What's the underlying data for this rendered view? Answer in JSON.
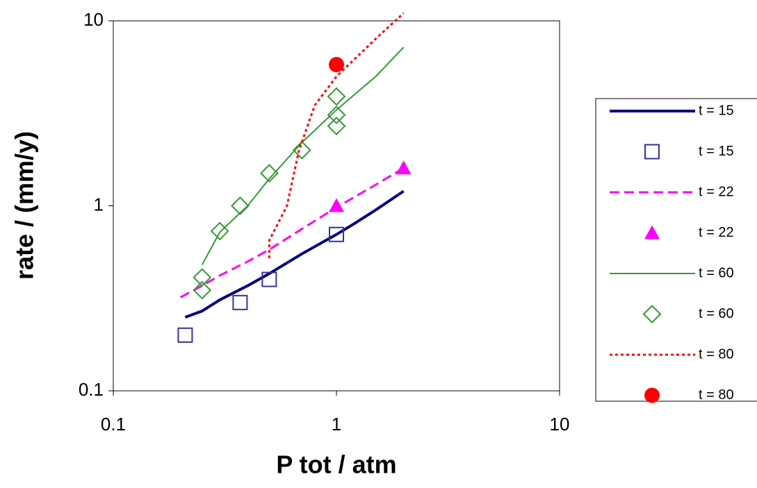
{
  "chart_data": {
    "type": "scatter-line",
    "xlabel": "P tot / atm",
    "ylabel": "rate / (mm/y)",
    "xscale": "log",
    "yscale": "log",
    "xlim": [
      0.1,
      10
    ],
    "ylim": [
      0.1,
      10
    ],
    "xticks": [
      0.1,
      1,
      10
    ],
    "yticks": [
      0.1,
      1,
      10
    ],
    "series": [
      {
        "name": "t = 15",
        "color": "#000080",
        "line_style": "solid",
        "line_width": 4,
        "marker": "none",
        "x": [
          0.21,
          0.25,
          0.3,
          0.4,
          0.5,
          0.7,
          1,
          1.2,
          1.5,
          2
        ],
        "values": [
          0.25,
          0.27,
          0.31,
          0.37,
          0.43,
          0.55,
          0.7,
          0.8,
          0.95,
          1.2
        ]
      },
      {
        "name": "t = 15",
        "color": "#333399",
        "line_style": "none",
        "marker": "square",
        "x": [
          0.21,
          0.37,
          0.5,
          1
        ],
        "values": [
          0.2,
          0.3,
          0.4,
          0.7
        ]
      },
      {
        "name": "t = 22",
        "color": "#ff00ff",
        "line_style": "dashed",
        "line_width": 3,
        "marker": "none",
        "x": [
          0.2,
          0.25,
          0.3,
          0.4,
          0.5,
          0.7,
          1,
          1.5,
          2
        ],
        "values": [
          0.32,
          0.37,
          0.42,
          0.5,
          0.58,
          0.75,
          0.98,
          1.3,
          1.6
        ]
      },
      {
        "name": "t = 22",
        "color": "#ff00ff",
        "line_style": "none",
        "marker": "triangle",
        "x": [
          1,
          2
        ],
        "values": [
          1.0,
          1.6
        ]
      },
      {
        "name": "t = 60",
        "color": "#339933",
        "line_style": "solid",
        "line_width": 2,
        "marker": "none",
        "x": [
          0.25,
          0.3,
          0.4,
          0.5,
          0.7,
          1,
          1.5,
          2
        ],
        "values": [
          0.48,
          0.72,
          1.0,
          1.4,
          2.2,
          3.3,
          5,
          7.2
        ]
      },
      {
        "name": "t = 60",
        "color": "#339933",
        "line_style": "none",
        "marker": "diamond",
        "x": [
          0.25,
          0.25,
          0.3,
          0.37,
          0.5,
          0.7,
          1,
          1,
          1
        ],
        "values": [
          0.41,
          0.35,
          0.73,
          1.0,
          1.5,
          2.0,
          3.9,
          3.1,
          2.7
        ]
      },
      {
        "name": "t = 80",
        "color": "#ff0000",
        "line_style": "dotted",
        "line_width": 3,
        "marker": "none",
        "x": [
          0.5,
          0.5,
          0.6,
          0.68,
          0.8,
          1,
          1.5,
          2
        ],
        "values": [
          0.52,
          0.65,
          1.0,
          2.0,
          3.5,
          5,
          8,
          11
        ]
      },
      {
        "name": "t = 80",
        "color": "#ff0000",
        "line_style": "none",
        "marker": "circle",
        "x": [
          1
        ],
        "values": [
          5.8
        ]
      }
    ]
  }
}
